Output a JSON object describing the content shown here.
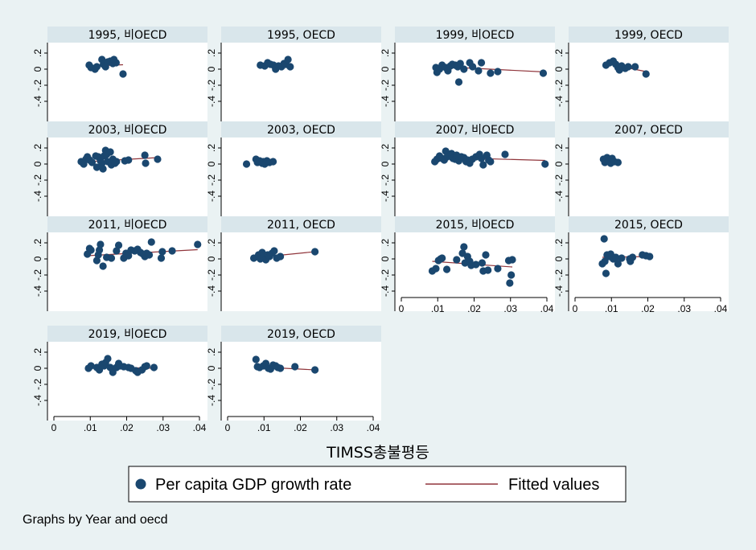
{
  "chart_data": {
    "type": "scatter",
    "xlabel": "TIMSS총불평등",
    "note": "Graphs by Year and oecd",
    "x_ticks": [
      "0",
      ".01",
      ".02",
      ".03",
      ".04"
    ],
    "y_ticks": [
      ".2",
      "0",
      "-.2",
      "-.4"
    ],
    "xlim": [
      0,
      0.04
    ],
    "ylim": [
      -0.45,
      0.25
    ],
    "legend": {
      "position": "bottom",
      "items": [
        {
          "label": "Per capita GDP growth rate",
          "kind": "marker",
          "color": "#1a476f"
        },
        {
          "label": "Fitted values",
          "kind": "line",
          "color": "#90353b"
        }
      ]
    },
    "colors": {
      "background": "#eaf2f3",
      "panel": "#ffffff",
      "title_bar": "#d9e6eb",
      "marker": "#1a476f",
      "fit_line": "#90353b"
    },
    "panels": [
      {
        "title": "1995, 비OECD",
        "fit": [
          [
            0.0095,
            0.035
          ],
          [
            0.019,
            0.055
          ]
        ],
        "points": [
          [
            0.0097,
            0.05
          ],
          [
            0.0102,
            0.02
          ],
          [
            0.0113,
            0.0
          ],
          [
            0.0118,
            0.03
          ],
          [
            0.0132,
            0.12
          ],
          [
            0.0136,
            0.06
          ],
          [
            0.0142,
            0.03
          ],
          [
            0.0148,
            0.09
          ],
          [
            0.0155,
            0.1
          ],
          [
            0.0162,
            0.07
          ],
          [
            0.0165,
            0.12
          ],
          [
            0.0171,
            0.08
          ],
          [
            0.019,
            -0.06
          ]
        ]
      },
      {
        "title": "1995, OECD",
        "fit": [
          [
            0.0088,
            0.03
          ],
          [
            0.0175,
            0.07
          ]
        ],
        "points": [
          [
            0.009,
            0.05
          ],
          [
            0.0102,
            0.04
          ],
          [
            0.011,
            0.08
          ],
          [
            0.0118,
            0.06
          ],
          [
            0.0126,
            0.05
          ],
          [
            0.0132,
            0.0
          ],
          [
            0.014,
            0.04
          ],
          [
            0.0148,
            0.03
          ],
          [
            0.0155,
            0.07
          ],
          [
            0.016,
            0.06
          ],
          [
            0.0166,
            0.12
          ],
          [
            0.0172,
            0.03
          ]
        ]
      },
      {
        "title": "1999, 비OECD",
        "fit": [
          [
            0.0095,
            0.035
          ],
          [
            0.0395,
            -0.035
          ]
        ],
        "points": [
          [
            0.0095,
            0.02
          ],
          [
            0.0098,
            -0.04
          ],
          [
            0.0105,
            0.0
          ],
          [
            0.0112,
            0.05
          ],
          [
            0.0122,
            0.02
          ],
          [
            0.0128,
            -0.02
          ],
          [
            0.0135,
            0.04
          ],
          [
            0.014,
            0.06
          ],
          [
            0.0148,
            0.05
          ],
          [
            0.0155,
            0.03
          ],
          [
            0.0158,
            -0.16
          ],
          [
            0.0162,
            0.07
          ],
          [
            0.0172,
            0.0
          ],
          [
            0.0188,
            0.08
          ],
          [
            0.0196,
            0.03
          ],
          [
            0.0212,
            -0.02
          ],
          [
            0.022,
            0.08
          ],
          [
            0.0245,
            -0.05
          ],
          [
            0.0265,
            -0.03
          ],
          [
            0.039,
            -0.05
          ]
        ]
      },
      {
        "title": "1999, OECD",
        "fit": [
          [
            0.0085,
            0.07
          ],
          [
            0.0195,
            -0.03
          ]
        ],
        "points": [
          [
            0.0085,
            0.05
          ],
          [
            0.0095,
            0.08
          ],
          [
            0.0105,
            0.1
          ],
          [
            0.0112,
            0.06
          ],
          [
            0.0118,
            0.02
          ],
          [
            0.0122,
            -0.01
          ],
          [
            0.0128,
            0.04
          ],
          [
            0.0138,
            0.01
          ],
          [
            0.0146,
            0.03
          ],
          [
            0.0165,
            0.03
          ],
          [
            0.0195,
            -0.06
          ]
        ]
      },
      {
        "title": "2003, 비OECD",
        "fit": [
          [
            0.0075,
            0.025
          ],
          [
            0.0285,
            0.08
          ]
        ],
        "points": [
          [
            0.0075,
            0.03
          ],
          [
            0.0082,
            0.0
          ],
          [
            0.0088,
            0.06
          ],
          [
            0.0092,
            0.09
          ],
          [
            0.0098,
            0.05
          ],
          [
            0.0105,
            0.02
          ],
          [
            0.0115,
            0.1
          ],
          [
            0.0118,
            -0.04
          ],
          [
            0.0122,
            0.09
          ],
          [
            0.0128,
            0.04
          ],
          [
            0.0132,
            0.01
          ],
          [
            0.0135,
            -0.06
          ],
          [
            0.0138,
            0.1
          ],
          [
            0.0142,
            0.17
          ],
          [
            0.0145,
            0.12
          ],
          [
            0.0148,
            0.03
          ],
          [
            0.0155,
            0.15
          ],
          [
            0.0158,
            -0.01
          ],
          [
            0.0162,
            0.06
          ],
          [
            0.0168,
            0.01
          ],
          [
            0.0172,
            0.03
          ],
          [
            0.0195,
            0.04
          ],
          [
            0.0205,
            0.05
          ],
          [
            0.025,
            0.11
          ],
          [
            0.0252,
            0.01
          ],
          [
            0.0285,
            0.06
          ]
        ]
      },
      {
        "title": "2003, OECD",
        "fit": [
          [
            0.0085,
            0.02
          ],
          [
            0.0125,
            0.045
          ]
        ],
        "points": [
          [
            0.0052,
            0.0
          ],
          [
            0.0078,
            0.06
          ],
          [
            0.0082,
            0.02
          ],
          [
            0.0088,
            0.04
          ],
          [
            0.0095,
            0.01
          ],
          [
            0.0098,
            0.03
          ],
          [
            0.0102,
            0.0
          ],
          [
            0.0108,
            0.04
          ],
          [
            0.0115,
            0.02
          ],
          [
            0.0125,
            0.03
          ]
        ]
      },
      {
        "title": "2007, 비OECD",
        "fit": [
          [
            0.009,
            0.085
          ],
          [
            0.0395,
            0.045
          ]
        ],
        "points": [
          [
            0.0092,
            0.03
          ],
          [
            0.0098,
            0.06
          ],
          [
            0.0105,
            0.1
          ],
          [
            0.0112,
            0.07
          ],
          [
            0.0118,
            0.05
          ],
          [
            0.0122,
            0.16
          ],
          [
            0.0126,
            0.09
          ],
          [
            0.0132,
            0.12
          ],
          [
            0.0138,
            0.13
          ],
          [
            0.0142,
            0.07
          ],
          [
            0.0148,
            0.06
          ],
          [
            0.0152,
            0.11
          ],
          [
            0.0158,
            0.04
          ],
          [
            0.0165,
            0.09
          ],
          [
            0.0172,
            0.08
          ],
          [
            0.0178,
            0.03
          ],
          [
            0.0182,
            0.05
          ],
          [
            0.0188,
            0.01
          ],
          [
            0.0195,
            0.06
          ],
          [
            0.0205,
            0.09
          ],
          [
            0.0215,
            0.12
          ],
          [
            0.022,
            0.07
          ],
          [
            0.0225,
            -0.01
          ],
          [
            0.0235,
            0.11
          ],
          [
            0.024,
            0.05
          ],
          [
            0.0245,
            0.03
          ],
          [
            0.0285,
            0.12
          ],
          [
            0.0395,
            0.0
          ]
        ]
      },
      {
        "title": "2007, OECD",
        "fit": [
          [
            0.008,
            0.05
          ],
          [
            0.012,
            0.05
          ]
        ],
        "points": [
          [
            0.0078,
            0.06
          ],
          [
            0.0082,
            0.02
          ],
          [
            0.0088,
            0.08
          ],
          [
            0.0092,
            0.04
          ],
          [
            0.0095,
            0.05
          ],
          [
            0.0098,
            0.01
          ],
          [
            0.0102,
            0.07
          ],
          [
            0.0108,
            0.03
          ],
          [
            0.0118,
            0.02
          ]
        ]
      },
      {
        "title": "2011, 비OECD",
        "fit": [
          [
            0.0092,
            0.04
          ],
          [
            0.0395,
            0.115
          ]
        ],
        "points": [
          [
            0.0092,
            0.06
          ],
          [
            0.0098,
            0.13
          ],
          [
            0.0102,
            0.11
          ],
          [
            0.0118,
            -0.02
          ],
          [
            0.0122,
            0.05
          ],
          [
            0.0125,
            0.11
          ],
          [
            0.0128,
            0.18
          ],
          [
            0.0135,
            -0.09
          ],
          [
            0.0145,
            0.02
          ],
          [
            0.0158,
            0.01
          ],
          [
            0.0172,
            0.1
          ],
          [
            0.0178,
            0.17
          ],
          [
            0.0192,
            0.01
          ],
          [
            0.0198,
            0.07
          ],
          [
            0.0205,
            0.04
          ],
          [
            0.0212,
            0.11
          ],
          [
            0.0222,
            0.1
          ],
          [
            0.023,
            0.12
          ],
          [
            0.0238,
            0.08
          ],
          [
            0.0245,
            0.06
          ],
          [
            0.025,
            0.03
          ],
          [
            0.0255,
            0.07
          ],
          [
            0.0262,
            0.05
          ],
          [
            0.0268,
            0.21
          ],
          [
            0.0295,
            0.01
          ],
          [
            0.0298,
            0.09
          ],
          [
            0.0325,
            0.1
          ],
          [
            0.0395,
            0.18
          ]
        ]
      },
      {
        "title": "2011, OECD",
        "fit": [
          [
            0.0075,
            0.015
          ],
          [
            0.024,
            0.09
          ]
        ],
        "points": [
          [
            0.0072,
            0.01
          ],
          [
            0.0085,
            0.05
          ],
          [
            0.009,
            0.0
          ],
          [
            0.0095,
            0.08
          ],
          [
            0.0098,
            0.03
          ],
          [
            0.0105,
            -0.01
          ],
          [
            0.011,
            0.05
          ],
          [
            0.0115,
            0.03
          ],
          [
            0.0122,
            0.07
          ],
          [
            0.0128,
            0.1
          ],
          [
            0.0135,
            0.01
          ],
          [
            0.0145,
            0.03
          ],
          [
            0.024,
            0.09
          ]
        ]
      },
      {
        "title": "2015, 비OECD",
        "fit": [
          [
            0.0085,
            -0.03
          ],
          [
            0.0305,
            -0.1
          ]
        ],
        "points": [
          [
            0.0085,
            -0.15
          ],
          [
            0.0095,
            -0.12
          ],
          [
            0.0102,
            -0.02
          ],
          [
            0.0108,
            0.0
          ],
          [
            0.0112,
            0.01
          ],
          [
            0.0125,
            -0.13
          ],
          [
            0.0152,
            -0.01
          ],
          [
            0.0168,
            0.07
          ],
          [
            0.0172,
            0.15
          ],
          [
            0.0175,
            -0.05
          ],
          [
            0.0182,
            0.03
          ],
          [
            0.0188,
            -0.03
          ],
          [
            0.0192,
            -0.08
          ],
          [
            0.0205,
            -0.07
          ],
          [
            0.0222,
            -0.05
          ],
          [
            0.0225,
            -0.15
          ],
          [
            0.0232,
            0.05
          ],
          [
            0.0238,
            -0.14
          ],
          [
            0.0265,
            -0.12
          ],
          [
            0.0295,
            -0.02
          ],
          [
            0.0298,
            -0.3
          ],
          [
            0.0302,
            -0.2
          ],
          [
            0.0305,
            -0.01
          ]
        ]
      },
      {
        "title": "2015, OECD",
        "fit": [
          [
            0.0075,
            0.02
          ],
          [
            0.0205,
            0.03
          ]
        ],
        "points": [
          [
            0.0075,
            -0.06
          ],
          [
            0.008,
            0.25
          ],
          [
            0.0082,
            -0.03
          ],
          [
            0.0085,
            -0.18
          ],
          [
            0.0088,
            0.05
          ],
          [
            0.0092,
            0.03
          ],
          [
            0.0098,
            0.06
          ],
          [
            0.0105,
            0.0
          ],
          [
            0.0112,
            0.02
          ],
          [
            0.0118,
            -0.06
          ],
          [
            0.0128,
            0.01
          ],
          [
            0.015,
            0.0
          ],
          [
            0.0152,
            -0.03
          ],
          [
            0.0158,
            0.02
          ],
          [
            0.0185,
            0.05
          ],
          [
            0.0195,
            0.04
          ],
          [
            0.0205,
            0.03
          ]
        ]
      },
      {
        "title": "2019, 비OECD",
        "fit": [
          [
            0.009,
            0.02
          ],
          [
            0.0275,
            0.0
          ]
        ],
        "points": [
          [
            0.0095,
            0.0
          ],
          [
            0.0102,
            0.03
          ],
          [
            0.0118,
            0.01
          ],
          [
            0.0125,
            -0.02
          ],
          [
            0.0132,
            0.05
          ],
          [
            0.0138,
            0.03
          ],
          [
            0.0142,
            0.07
          ],
          [
            0.0148,
            0.12
          ],
          [
            0.0155,
            0.01
          ],
          [
            0.0162,
            -0.05
          ],
          [
            0.0172,
            0.01
          ],
          [
            0.0178,
            0.06
          ],
          [
            0.0182,
            0.03
          ],
          [
            0.0192,
            0.02
          ],
          [
            0.0205,
            0.01
          ],
          [
            0.0212,
            0.0
          ],
          [
            0.0225,
            -0.03
          ],
          [
            0.023,
            -0.05
          ],
          [
            0.0242,
            -0.02
          ],
          [
            0.025,
            0.02
          ],
          [
            0.0255,
            0.03
          ],
          [
            0.0275,
            0.01
          ]
        ]
      },
      {
        "title": "2019, OECD",
        "fit": [
          [
            0.0075,
            0.02
          ],
          [
            0.024,
            -0.02
          ]
        ],
        "points": [
          [
            0.0078,
            0.11
          ],
          [
            0.0082,
            0.02
          ],
          [
            0.0088,
            0.01
          ],
          [
            0.0098,
            0.03
          ],
          [
            0.0105,
            0.06
          ],
          [
            0.0112,
            0.0
          ],
          [
            0.0118,
            -0.01
          ],
          [
            0.0125,
            0.04
          ],
          [
            0.0132,
            0.03
          ],
          [
            0.0138,
            0.01
          ],
          [
            0.0145,
            0.0
          ],
          [
            0.0185,
            0.02
          ],
          [
            0.024,
            -0.02
          ]
        ]
      }
    ]
  }
}
